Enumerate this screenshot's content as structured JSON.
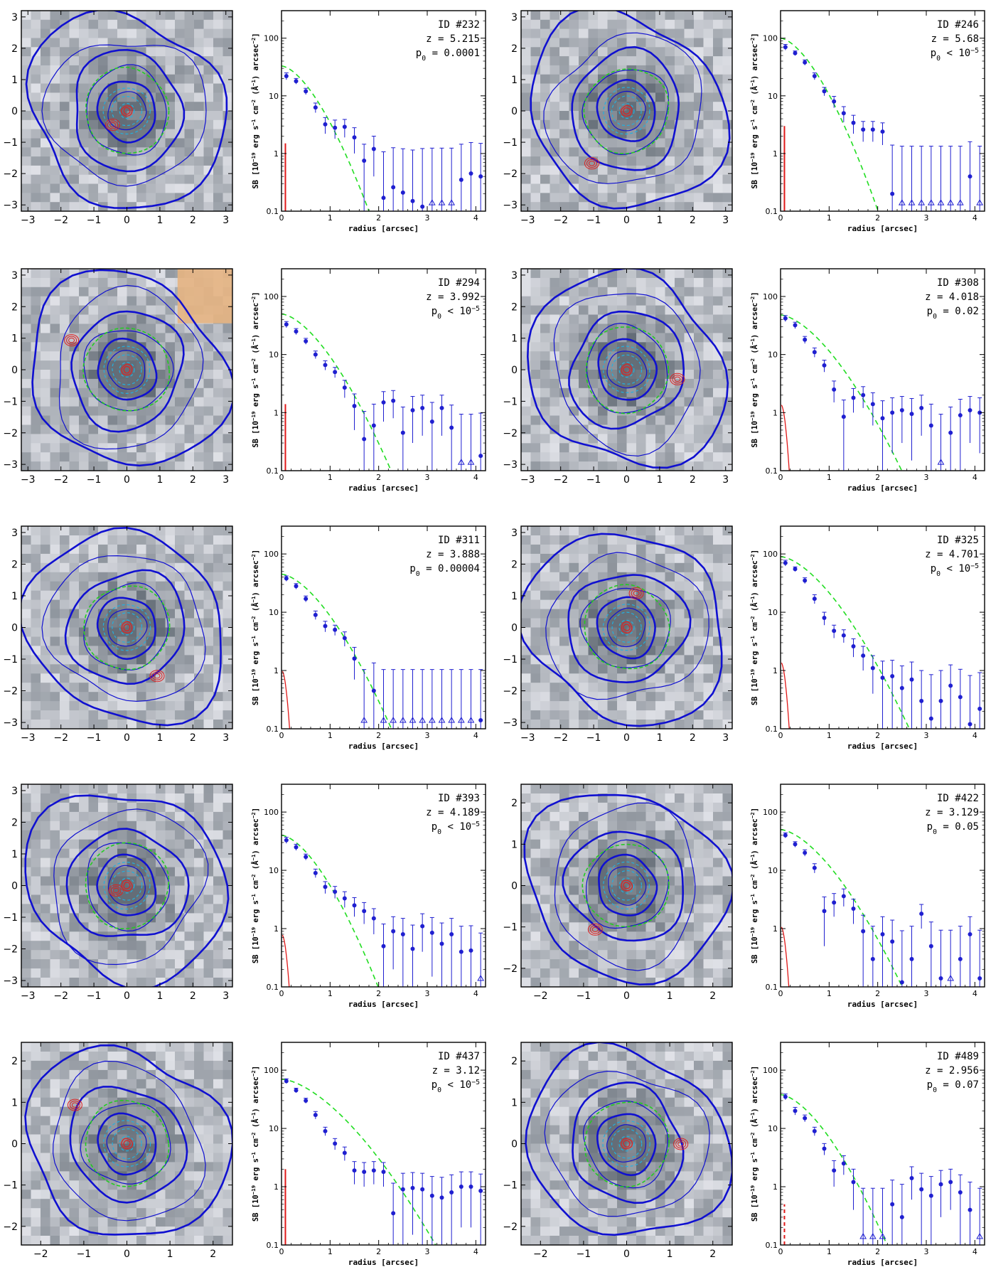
{
  "figure": {
    "xlabel_profile": "radius [arcsec]",
    "ylabel_profile": "SB [10^-19 erg s^-1 cm^-2 (Å^-1) arcsec^-2]",
    "colors": {
      "points": "#1f1fd0",
      "model": "#22dd22",
      "psf": "#e01818",
      "contour_blue": "#1010d0",
      "contour_red": "#e02020",
      "contour_green": "#22cc22",
      "contour_cyan": "#22b0e0",
      "mask": "#e6b482"
    }
  },
  "chart_data": [
    {
      "type": "scatter",
      "id": "ID  #232",
      "z": "z  = 5.215",
      "p0": "p0 = 0.0001",
      "xlim": [
        0,
        4.2
      ],
      "ylim": [
        0.1,
        300
      ],
      "ylog": true,
      "xticks": [
        "0",
        "1",
        "2",
        "3",
        "4"
      ],
      "yticks": [
        "0.1",
        "1",
        "10",
        "100"
      ],
      "image_ticks": [
        "−3",
        "−2",
        "−1",
        "0",
        "1",
        "2",
        "3"
      ],
      "image_range": 3.2,
      "x": [
        0.1,
        0.3,
        0.5,
        0.7,
        0.9,
        1.1,
        1.3,
        1.5,
        1.7,
        1.9,
        2.1,
        2.3,
        2.5,
        2.7,
        2.9,
        3.1,
        3.3,
        3.5,
        3.7,
        3.9,
        4.1
      ],
      "y": [
        22,
        18,
        12,
        6.3,
        3.2,
        2.8,
        2.9,
        1.9,
        0.75,
        1.2,
        0.17,
        0.26,
        0.21,
        0.15,
        0.12,
        0.14,
        0.14,
        0.14,
        0.35,
        0.45,
        0.4
      ],
      "yerr": [
        3,
        2,
        1.5,
        1.2,
        1,
        1,
        1,
        0.9,
        0.7,
        0.8,
        0.9,
        1,
        1,
        1,
        1.1,
        1.1,
        1.1,
        1.1,
        1.1,
        1.1,
        1.1
      ],
      "upper_limits": [
        15,
        16,
        17
      ],
      "model_start": 33,
      "model_scale": 0.6,
      "psf_type": "bar",
      "psf_level": 1.5
    },
    {
      "type": "scatter",
      "id": "ID  #246",
      "z": "z  = 5.68",
      "p0": "p0 < 10^-5",
      "xlim": [
        0,
        4.2
      ],
      "ylim": [
        0.1,
        300
      ],
      "ylog": true,
      "xticks": [
        "0",
        "1",
        "2",
        "3",
        "4"
      ],
      "yticks": [
        "0.1",
        "1",
        "10",
        "100"
      ],
      "image_ticks": [
        "−3",
        "−2",
        "−1",
        "0",
        "1",
        "2",
        "3"
      ],
      "image_range": 3.2,
      "x": [
        0.1,
        0.3,
        0.5,
        0.7,
        0.9,
        1.1,
        1.3,
        1.5,
        1.7,
        1.9,
        2.1,
        2.3,
        2.5,
        2.7,
        2.9,
        3.1,
        3.3,
        3.5,
        3.7,
        3.9,
        4.1
      ],
      "y": [
        70,
        55,
        38,
        22,
        12,
        8,
        5,
        3.4,
        2.6,
        2.6,
        2.4,
        0.2,
        0.14,
        0.14,
        0.14,
        0.14,
        0.14,
        0.14,
        0.14,
        0.4,
        0.14
      ],
      "yerr": [
        8,
        5,
        4,
        3,
        2,
        1.8,
        1.5,
        1.2,
        1,
        1,
        1,
        1.2,
        1.2,
        1.2,
        1.2,
        1.2,
        1.2,
        1.2,
        1.2,
        1.2,
        1.2
      ],
      "upper_limits": [
        12,
        13,
        14,
        15,
        16,
        17,
        18,
        20
      ],
      "model_start": 100,
      "model_scale": 0.6,
      "psf_type": "bar",
      "psf_level": 3
    },
    {
      "type": "scatter",
      "id": "ID  #294",
      "z": "z  = 3.992",
      "p0": "p0 < 10^-5",
      "xlim": [
        0,
        4.2
      ],
      "ylim": [
        0.1,
        300
      ],
      "ylog": true,
      "xticks": [
        "0",
        "1",
        "2",
        "3",
        "4"
      ],
      "yticks": [
        "0.1",
        "1",
        "10",
        "100"
      ],
      "image_ticks": [
        "−3",
        "−2",
        "−1",
        "0",
        "1",
        "2",
        "3"
      ],
      "image_range": 3.2,
      "x": [
        0.1,
        0.3,
        0.5,
        0.7,
        0.9,
        1.1,
        1.3,
        1.5,
        1.7,
        1.9,
        2.1,
        2.3,
        2.5,
        2.7,
        2.9,
        3.1,
        3.3,
        3.5,
        3.7,
        3.9,
        4.1
      ],
      "y": [
        33,
        25,
        17,
        10,
        6.6,
        5,
        2.7,
        1.3,
        0.35,
        0.6,
        1.5,
        1.6,
        0.45,
        1.1,
        1.2,
        0.7,
        1.2,
        0.55,
        0.14,
        0.14,
        0.18
      ],
      "yerr": [
        4,
        3,
        2,
        1.5,
        1.2,
        1,
        0.9,
        0.8,
        0.7,
        0.8,
        0.8,
        0.8,
        0.8,
        0.8,
        0.8,
        0.8,
        0.8,
        0.8,
        0.8,
        0.8,
        0.8
      ],
      "upper_limits": [
        18,
        19
      ],
      "model_start": 50,
      "model_scale": 0.72,
      "psf_type": "bar",
      "psf_level": 1.4
    },
    {
      "type": "scatter",
      "id": "ID  #308",
      "z": "z  = 4.018",
      "p0": "p0 = 0.02",
      "xlim": [
        0,
        4.2
      ],
      "ylim": [
        0.1,
        300
      ],
      "ylog": true,
      "xticks": [
        "0",
        "1",
        "2",
        "3",
        "4"
      ],
      "yticks": [
        "0.1",
        "1",
        "10",
        "100"
      ],
      "image_ticks": [
        "−3",
        "−2",
        "−1",
        "0",
        "1",
        "2",
        "3"
      ],
      "image_range": 3.2,
      "x": [
        0.1,
        0.3,
        0.5,
        0.7,
        0.9,
        1.1,
        1.3,
        1.5,
        1.7,
        1.9,
        2.1,
        2.3,
        2.5,
        2.7,
        2.9,
        3.1,
        3.3,
        3.5,
        3.7,
        3.9,
        4.1
      ],
      "y": [
        42,
        32,
        18,
        11,
        6.5,
        2.5,
        0.85,
        1.8,
        2,
        1.4,
        0.8,
        1,
        1.1,
        0.95,
        1.2,
        0.6,
        0.14,
        0.45,
        0.9,
        1.1,
        1
      ],
      "yerr": [
        5,
        4,
        2.5,
        2,
        1.5,
        1,
        0.8,
        0.8,
        0.8,
        0.8,
        0.8,
        0.8,
        0.8,
        0.8,
        0.8,
        0.8,
        0.8,
        0.8,
        0.8,
        0.8,
        0.8
      ],
      "upper_limits": [
        16
      ],
      "model_start": 48,
      "model_scale": 0.8,
      "psf_type": "curve",
      "psf_level": 1.4
    },
    {
      "type": "scatter",
      "id": "ID  #311",
      "z": "z  = 3.888",
      "p0": "p0 = 0.00004",
      "xlim": [
        0,
        4.2
      ],
      "ylim": [
        0.1,
        300
      ],
      "ylog": true,
      "xticks": [
        "0",
        "1",
        "2",
        "3",
        "4"
      ],
      "yticks": [
        "0.1",
        "1",
        "10",
        "100"
      ],
      "image_ticks": [
        "−3",
        "−2",
        "−1",
        "0",
        "1",
        "2",
        "3"
      ],
      "image_range": 3.2,
      "x": [
        0.1,
        0.3,
        0.5,
        0.7,
        0.9,
        1.1,
        1.3,
        1.5,
        1.7,
        1.9,
        2.1,
        2.3,
        2.5,
        2.7,
        2.9,
        3.1,
        3.3,
        3.5,
        3.7,
        3.9,
        4.1
      ],
      "y": [
        38,
        28,
        17,
        9,
        5.8,
        5,
        3.6,
        1.6,
        0.14,
        0.45,
        0.14,
        0.14,
        0.14,
        0.14,
        0.14,
        0.14,
        0.14,
        0.14,
        0.14,
        0.14,
        0.14
      ],
      "yerr": [
        4,
        3,
        2,
        1.5,
        1.2,
        1,
        1,
        0.9,
        0.9,
        0.9,
        0.9,
        0.9,
        0.9,
        0.9,
        0.9,
        0.9,
        0.9,
        0.9,
        0.9,
        0.9,
        0.9
      ],
      "upper_limits": [
        8,
        10,
        11,
        12,
        13,
        14,
        15,
        16,
        17,
        18,
        19
      ],
      "model_start": 45,
      "model_scale": 0.73,
      "psf_type": "curve",
      "psf_level": 1
    },
    {
      "type": "scatter",
      "id": "ID  #325",
      "z": "z  = 4.701",
      "p0": "p0 < 10^-5",
      "xlim": [
        0,
        4.2
      ],
      "ylim": [
        0.1,
        300
      ],
      "ylog": true,
      "xticks": [
        "0",
        "1",
        "2",
        "3",
        "4"
      ],
      "yticks": [
        "0.1",
        "1",
        "10",
        "100"
      ],
      "image_ticks": [
        "−3",
        "−2",
        "−1",
        "0",
        "1",
        "2",
        "3"
      ],
      "image_range": 3.2,
      "x": [
        0.1,
        0.3,
        0.5,
        0.7,
        0.9,
        1.1,
        1.3,
        1.5,
        1.7,
        1.9,
        2.1,
        2.3,
        2.5,
        2.7,
        2.9,
        3.1,
        3.3,
        3.5,
        3.7,
        3.9,
        4.1
      ],
      "y": [
        70,
        55,
        35,
        17,
        8,
        4.8,
        4,
        2.6,
        1.8,
        1.1,
        0.75,
        0.8,
        0.5,
        0.7,
        0.3,
        0.15,
        0.3,
        0.55,
        0.35,
        0.12,
        0.22
      ],
      "yerr": [
        8,
        5,
        4,
        3,
        2,
        1.2,
        1,
        0.9,
        0.8,
        0.7,
        0.7,
        0.7,
        0.7,
        0.7,
        0.7,
        0.7,
        0.7,
        0.7,
        0.7,
        0.7,
        0.7
      ],
      "upper_limits": [],
      "model_start": 90,
      "model_scale": 0.8,
      "psf_type": "curve",
      "psf_level": 1.4
    },
    {
      "type": "scatter",
      "id": "ID  #393",
      "z": "z  = 4.189",
      "p0": "p0 < 10^-5",
      "xlim": [
        0,
        4.2
      ],
      "ylim": [
        0.1,
        300
      ],
      "ylog": true,
      "xticks": [
        "0",
        "1",
        "2",
        "3",
        "4"
      ],
      "yticks": [
        "0.1",
        "1",
        "10",
        "100"
      ],
      "image_ticks": [
        "−3",
        "−2",
        "−1",
        "0",
        "1",
        "2",
        "3"
      ],
      "image_range": 3.2,
      "x": [
        0.1,
        0.3,
        0.5,
        0.7,
        0.9,
        1.1,
        1.3,
        1.5,
        1.7,
        1.9,
        2.1,
        2.3,
        2.5,
        2.7,
        2.9,
        3.1,
        3.3,
        3.5,
        3.7,
        3.9,
        4.1
      ],
      "y": [
        33,
        25,
        17,
        9,
        5.2,
        4.3,
        3.3,
        2.5,
        2,
        1.5,
        0.5,
        0.9,
        0.8,
        0.45,
        1.1,
        0.85,
        0.55,
        0.8,
        0.4,
        0.42,
        0.14
      ],
      "yerr": [
        4,
        3,
        2,
        1.5,
        1.2,
        1,
        1,
        0.9,
        0.8,
        0.7,
        0.7,
        0.7,
        0.7,
        0.7,
        0.7,
        0.7,
        0.7,
        0.7,
        0.7,
        0.7,
        0.7
      ],
      "upper_limits": [
        20
      ],
      "model_start": 40,
      "model_scale": 0.65,
      "psf_type": "curve",
      "psf_level": 0.8
    },
    {
      "type": "scatter",
      "id": "ID  #422",
      "z": "z  = 3.129",
      "p0": "p0 = 0.05",
      "xlim": [
        0,
        4.2
      ],
      "ylim": [
        0.1,
        300
      ],
      "ylog": true,
      "xticks": [
        "0",
        "1",
        "2",
        "3",
        "4"
      ],
      "yticks": [
        "0.1",
        "1",
        "10",
        "100"
      ],
      "image_ticks": [
        "−2",
        "−1",
        "0",
        "1",
        "2"
      ],
      "image_range": 2.45,
      "x": [
        0.1,
        0.3,
        0.5,
        0.7,
        0.9,
        1.1,
        1.3,
        1.5,
        1.7,
        1.9,
        2.1,
        2.3,
        2.5,
        2.7,
        2.9,
        3.1,
        3.3,
        3.5,
        3.7,
        3.9,
        4.1
      ],
      "y": [
        40,
        28,
        20,
        11,
        2,
        2.8,
        3.6,
        2.2,
        0.9,
        0.3,
        0.8,
        0.6,
        0.12,
        0.3,
        1.8,
        0.5,
        0.14,
        0.14,
        0.3,
        0.8,
        0.14
      ],
      "yerr": [
        4,
        3,
        2.5,
        2,
        1.5,
        1.2,
        1.2,
        1,
        0.8,
        0.8,
        0.8,
        0.8,
        0.8,
        0.8,
        0.8,
        0.8,
        0.8,
        0.8,
        0.8,
        0.8,
        0.8
      ],
      "upper_limits": [
        17
      ],
      "model_start": 50,
      "model_scale": 0.8,
      "psf_type": "curve",
      "psf_level": 1.1
    },
    {
      "type": "scatter",
      "id": "ID  #437",
      "z": "z  = 3.12",
      "p0": "p0 < 10^-5",
      "xlim": [
        0,
        4.2
      ],
      "ylim": [
        0.1,
        300
      ],
      "ylog": true,
      "xticks": [
        "0",
        "1",
        "2",
        "3",
        "4"
      ],
      "yticks": [
        "0.1",
        "1",
        "10",
        "100"
      ],
      "image_ticks": [
        "−2",
        "−1",
        "0",
        "1",
        "2"
      ],
      "image_range": 2.45,
      "x": [
        0.1,
        0.3,
        0.5,
        0.7,
        0.9,
        1.1,
        1.3,
        1.5,
        1.7,
        1.9,
        2.1,
        2.3,
        2.5,
        2.7,
        2.9,
        3.1,
        3.3,
        3.5,
        3.7,
        3.9,
        4.1
      ],
      "y": [
        65,
        45,
        30,
        17,
        9,
        5.5,
        3.8,
        1.9,
        1.8,
        1.9,
        1.8,
        0.35,
        0.9,
        0.95,
        0.9,
        0.7,
        0.65,
        0.8,
        1,
        1,
        0.85
      ],
      "yerr": [
        6,
        4,
        3,
        2.5,
        1.5,
        1.2,
        1,
        0.8,
        0.8,
        0.8,
        0.8,
        0.8,
        0.8,
        0.8,
        0.8,
        0.8,
        0.8,
        0.8,
        0.8,
        0.8,
        0.8
      ],
      "upper_limits": [],
      "model_start": 70,
      "model_scale": 0.98,
      "psf_type": "bar",
      "psf_level": 2
    },
    {
      "type": "scatter",
      "id": "ID  #489",
      "z": "z  = 2.956",
      "p0": "p0 = 0.07",
      "xlim": [
        0,
        4.2
      ],
      "ylim": [
        0.1,
        300
      ],
      "ylog": true,
      "xticks": [
        "0",
        "1",
        "2",
        "3",
        "4"
      ],
      "yticks": [
        "0.1",
        "1",
        "10",
        "100"
      ],
      "image_ticks": [
        "−2",
        "−1",
        "0",
        "1",
        "2"
      ],
      "image_range": 2.45,
      "x": [
        0.1,
        0.3,
        0.5,
        0.7,
        0.9,
        1.1,
        1.3,
        1.5,
        1.7,
        1.9,
        2.1,
        2.3,
        2.5,
        2.7,
        2.9,
        3.1,
        3.3,
        3.5,
        3.7,
        3.9,
        4.1
      ],
      "y": [
        35,
        20,
        15,
        9,
        4.5,
        1.9,
        2.5,
        1.2,
        0.14,
        0.14,
        0.14,
        0.5,
        0.3,
        1.4,
        0.9,
        0.7,
        1.1,
        1.2,
        0.8,
        0.4,
        0.14
      ],
      "yerr": [
        4,
        3,
        2,
        1.5,
        1,
        0.9,
        0.9,
        0.8,
        0.8,
        0.8,
        0.8,
        0.8,
        0.8,
        0.8,
        0.8,
        0.8,
        0.8,
        0.8,
        0.8,
        0.8,
        0.8
      ],
      "upper_limits": [
        8,
        9,
        10,
        20
      ],
      "model_start": 38,
      "model_scale": 0.72,
      "psf_type": "dashed",
      "psf_level": 0.5
    }
  ]
}
